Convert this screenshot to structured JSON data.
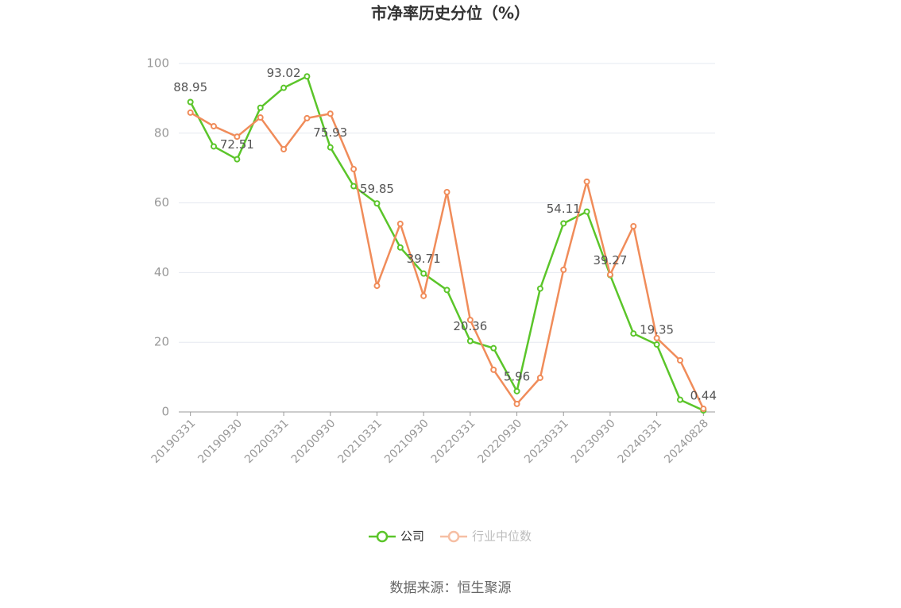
{
  "chart_data": {
    "type": "line",
    "title": "市净率历史分位（%）",
    "categories": [
      "20190331",
      null,
      "20190930",
      null,
      "20200331",
      null,
      "20200930",
      null,
      "20210331",
      null,
      "20210930",
      null,
      "20220331",
      null,
      "20220930",
      null,
      "20230331",
      null,
      "20230930",
      null,
      "20240331",
      null,
      "20240828"
    ],
    "series": [
      {
        "name": "公司",
        "color": "#5bc52a",
        "values": [
          88.95,
          76.2,
          72.51,
          87.3,
          93.02,
          96.3,
          75.93,
          64.8,
          59.85,
          47.2,
          39.71,
          35.0,
          20.36,
          18.3,
          5.96,
          35.4,
          54.11,
          57.5,
          39.27,
          22.5,
          19.35,
          3.5,
          0.44
        ],
        "value_labels": [
          "88.95",
          null,
          "72.51",
          null,
          "93.02",
          null,
          "75.93",
          null,
          "59.85",
          null,
          "39.71",
          null,
          "20.36",
          null,
          "5.96",
          null,
          "54.11",
          null,
          "39.27",
          null,
          "19.35",
          null,
          "0.44"
        ]
      },
      {
        "name": "行业中位数",
        "color": "#f08c5a",
        "values": [
          85.9,
          82.0,
          79.0,
          84.5,
          75.4,
          84.3,
          85.6,
          69.7,
          36.2,
          54.0,
          33.3,
          63.1,
          26.4,
          12.1,
          2.3,
          9.8,
          40.8,
          66.1,
          39.4,
          53.3,
          21.2,
          14.8,
          0.9
        ]
      }
    ],
    "ylim": [
      0,
      100
    ],
    "yticks": [
      0,
      20,
      40,
      60,
      80,
      100
    ],
    "grid": true,
    "source": "数据来源：恒生聚源"
  }
}
